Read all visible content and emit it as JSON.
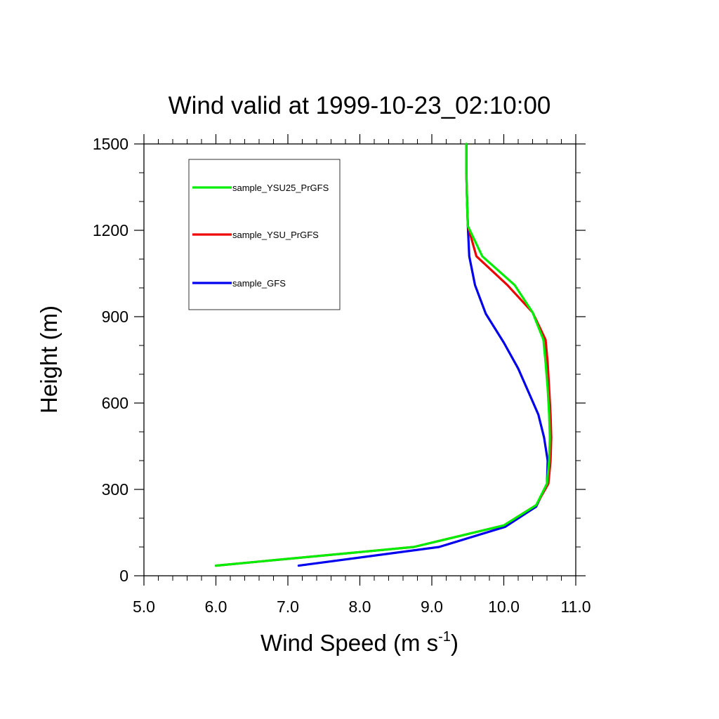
{
  "chart_data": {
    "type": "line",
    "title": "Wind valid at 1999-10-23_02:10:00",
    "xlabel": "Wind Speed (m s",
    "xlabel_sup": "-1",
    "xlabel_end": ")",
    "ylabel": "Height (m)",
    "xlim": [
      5.0,
      11.0
    ],
    "ylim": [
      0,
      1500
    ],
    "x_ticks": [
      5.0,
      6.0,
      7.0,
      8.0,
      9.0,
      10.0,
      11.0
    ],
    "x_tick_labels": [
      "5.0",
      "6.0",
      "7.0",
      "8.0",
      "9.0",
      "10.0",
      "11.0"
    ],
    "y_ticks": [
      0,
      300,
      600,
      900,
      1200,
      1500
    ],
    "y_tick_labels": [
      "0",
      "300",
      "600",
      "900",
      "1200",
      "1500"
    ],
    "grid": false,
    "legend_position": "top-left",
    "series": [
      {
        "name": "sample_YSU25_PrGFS",
        "color": "#00ee00",
        "points": [
          [
            6.0,
            35
          ],
          [
            8.75,
            100
          ],
          [
            10.0,
            175
          ],
          [
            10.45,
            245
          ],
          [
            10.6,
            320
          ],
          [
            10.63,
            400
          ],
          [
            10.64,
            480
          ],
          [
            10.63,
            560
          ],
          [
            10.61,
            650
          ],
          [
            10.58,
            740
          ],
          [
            10.55,
            820
          ],
          [
            10.4,
            915
          ],
          [
            10.15,
            1010
          ],
          [
            9.7,
            1110
          ],
          [
            9.5,
            1215
          ],
          [
            9.49,
            1300
          ],
          [
            9.48,
            1400
          ],
          [
            9.48,
            1500
          ]
        ]
      },
      {
        "name": "sample_YSU_PrGFS",
        "color": "#ee0000",
        "points": [
          [
            6.0,
            35
          ],
          [
            8.75,
            100
          ],
          [
            10.0,
            175
          ],
          [
            10.45,
            245
          ],
          [
            10.62,
            320
          ],
          [
            10.65,
            400
          ],
          [
            10.66,
            480
          ],
          [
            10.65,
            560
          ],
          [
            10.63,
            650
          ],
          [
            10.61,
            740
          ],
          [
            10.58,
            820
          ],
          [
            10.4,
            915
          ],
          [
            10.05,
            1010
          ],
          [
            9.62,
            1110
          ],
          [
            9.5,
            1215
          ],
          [
            9.49,
            1300
          ],
          [
            9.48,
            1400
          ],
          [
            9.48,
            1500
          ]
        ]
      },
      {
        "name": "sample_GFS",
        "color": "#0000ee",
        "points": [
          [
            7.15,
            35
          ],
          [
            9.1,
            100
          ],
          [
            10.02,
            170
          ],
          [
            10.45,
            240
          ],
          [
            10.6,
            320
          ],
          [
            10.61,
            400
          ],
          [
            10.56,
            480
          ],
          [
            10.48,
            560
          ],
          [
            10.34,
            640
          ],
          [
            10.2,
            720
          ],
          [
            10.0,
            810
          ],
          [
            9.75,
            910
          ],
          [
            9.6,
            1010
          ],
          [
            9.52,
            1110
          ],
          [
            9.5,
            1215
          ],
          [
            9.49,
            1300
          ],
          [
            9.48,
            1400
          ],
          [
            9.48,
            1500
          ]
        ]
      }
    ]
  }
}
